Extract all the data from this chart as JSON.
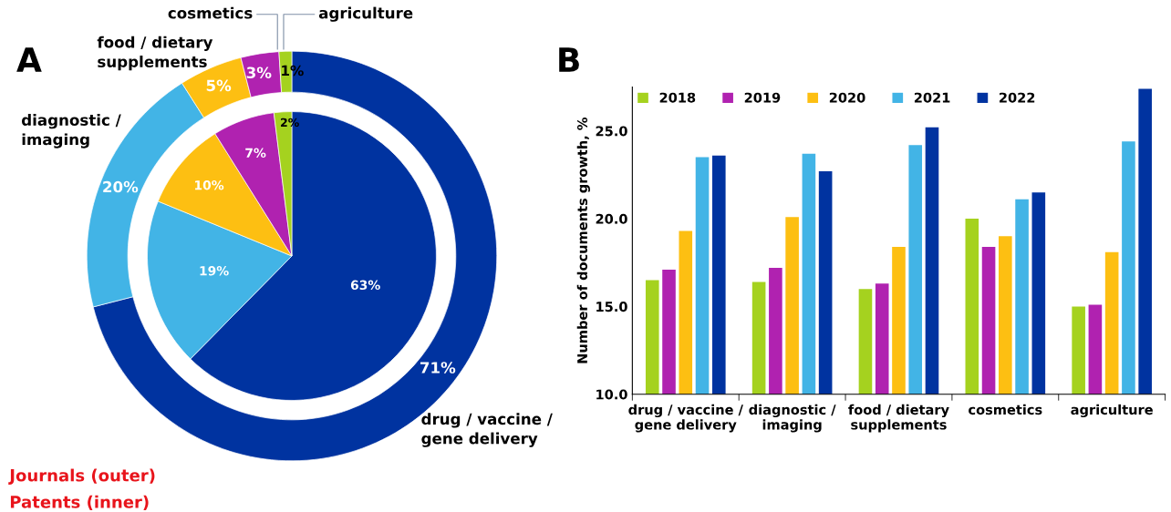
{
  "chart_data": [
    {
      "type": "donut",
      "title": "A",
      "categories": [
        "drug / vaccine /\ngene delivery",
        "diagnostic /\nimaging",
        "food / dietary\nsupplements",
        "cosmetics",
        "agriculture"
      ],
      "colors": [
        "#0033a0",
        "#42b4e6",
        "#fdbf12",
        "#b022b0",
        "#a5d21f"
      ],
      "series": [
        {
          "values": [
            71,
            20,
            5,
            3,
            1
          ],
          "value_labels": [
            "71%",
            "20%",
            "5%",
            "3%",
            "1%"
          ]
        },
        {
          "values": [
            63,
            19,
            10,
            7,
            2
          ],
          "value_labels": [
            "63%",
            "19%",
            "10%",
            "7%",
            "2%"
          ]
        }
      ],
      "annotations": [
        "Journals (outer)",
        "Patents (inner)"
      ]
    },
    {
      "type": "bar",
      "title": "B",
      "ylabel": "Number of documents growth, %",
      "categories": [
        "drug / vaccine /\ngene delivery",
        "diagnostic /\nimaging",
        "food / dietary\nsupplements",
        "cosmetics",
        "agriculture"
      ],
      "series": [
        {
          "name": "2018",
          "color": "#a5d21f",
          "values": [
            16.5,
            16.4,
            16.0,
            20.0,
            15.0
          ]
        },
        {
          "name": "2019",
          "color": "#b022b0",
          "values": [
            17.1,
            17.2,
            16.3,
            18.4,
            15.1
          ]
        },
        {
          "name": "2020",
          "color": "#fdbf12",
          "values": [
            19.3,
            20.1,
            18.4,
            19.0,
            18.1
          ]
        },
        {
          "name": "2021",
          "color": "#42b4e6",
          "values": [
            23.5,
            23.7,
            24.2,
            21.1,
            24.4
          ]
        },
        {
          "name": "2022",
          "color": "#0033a0",
          "values": [
            23.6,
            22.7,
            25.2,
            21.5,
            27.4
          ]
        }
      ],
      "ylim": [
        10,
        27.5
      ],
      "yticks": [
        {
          "value": 10,
          "label": "10.0"
        },
        {
          "value": 15,
          "label": "15.0"
        },
        {
          "value": 20,
          "label": "20.0"
        },
        {
          "value": 25,
          "label": "25.0"
        }
      ],
      "grid": false,
      "legend": "top left"
    }
  ]
}
